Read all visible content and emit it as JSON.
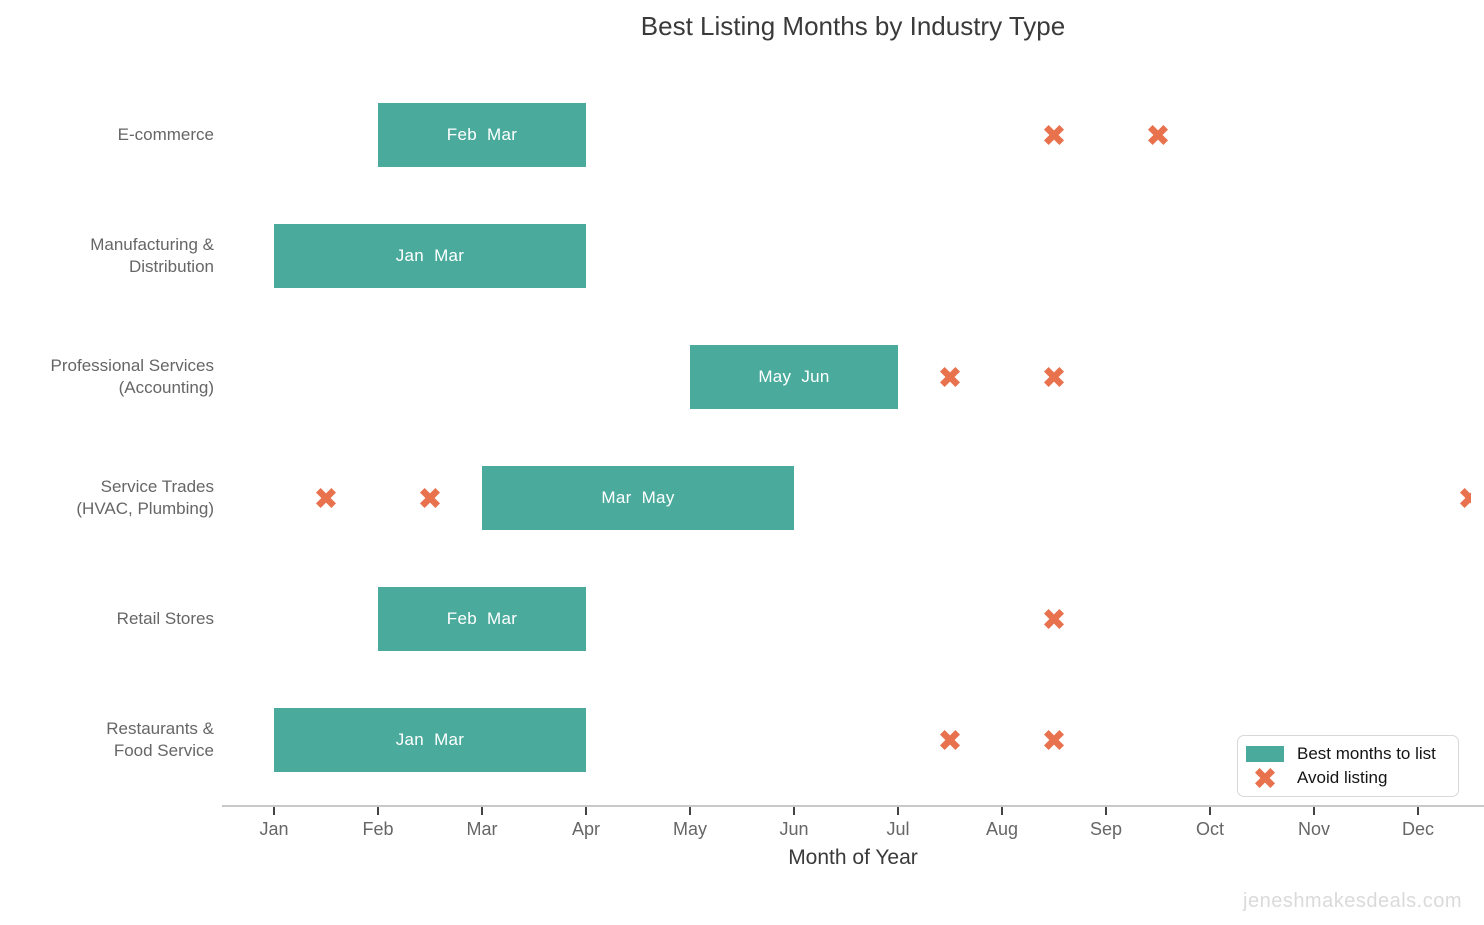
{
  "chart_data": {
    "type": "bar",
    "variant": "horizontal-gantt-timeline",
    "title": "Best Listing Months by Industry Type",
    "xlabel": "Month of Year",
    "months": [
      "Jan",
      "Feb",
      "Mar",
      "Apr",
      "May",
      "Jun",
      "Jul",
      "Aug",
      "Sep",
      "Oct",
      "Nov",
      "Dec"
    ],
    "rows": [
      {
        "industry": "E-commerce",
        "label_lines": [
          "E-commerce"
        ],
        "best_start": "Feb",
        "best_end": "Mar",
        "bar_label": "Feb  Mar",
        "avoid_months": [
          "Aug",
          "Sep"
        ]
      },
      {
        "industry": "Manufacturing & Distribution",
        "label_lines": [
          "Manufacturing &",
          "Distribution"
        ],
        "best_start": "Jan",
        "best_end": "Mar",
        "bar_label": "Jan  Mar",
        "avoid_months": []
      },
      {
        "industry": "Professional Services (Accounting)",
        "label_lines": [
          "Professional Services",
          "(Accounting)"
        ],
        "best_start": "May",
        "best_end": "Jun",
        "bar_label": "May  Jun",
        "avoid_months": [
          "Jul",
          "Aug"
        ]
      },
      {
        "industry": "Service Trades (HVAC, Plumbing)",
        "label_lines": [
          "Service Trades",
          "(HVAC, Plumbing)"
        ],
        "best_start": "Mar",
        "best_end": "May",
        "bar_label": "Mar  May",
        "avoid_months": [
          "Jan",
          "Feb",
          "Dec"
        ]
      },
      {
        "industry": "Retail Stores",
        "label_lines": [
          "Retail Stores"
        ],
        "best_start": "Feb",
        "best_end": "Mar",
        "bar_label": "Feb  Mar",
        "avoid_months": [
          "Aug"
        ]
      },
      {
        "industry": "Restaurants & Food Service",
        "label_lines": [
          "Restaurants &",
          "Food Service"
        ],
        "best_start": "Jan",
        "best_end": "Mar",
        "bar_label": "Jan  Mar",
        "avoid_months": [
          "Jul",
          "Aug"
        ]
      }
    ],
    "legend": {
      "best_label": "Best months to list",
      "avoid_label": "Avoid listing"
    },
    "colors": {
      "best": "#4aab9d",
      "avoid": "#e8714e"
    },
    "axis": {
      "grid": false,
      "legend_position": "bottom-right"
    }
  },
  "watermark": "jeneshmakesdeals.com"
}
